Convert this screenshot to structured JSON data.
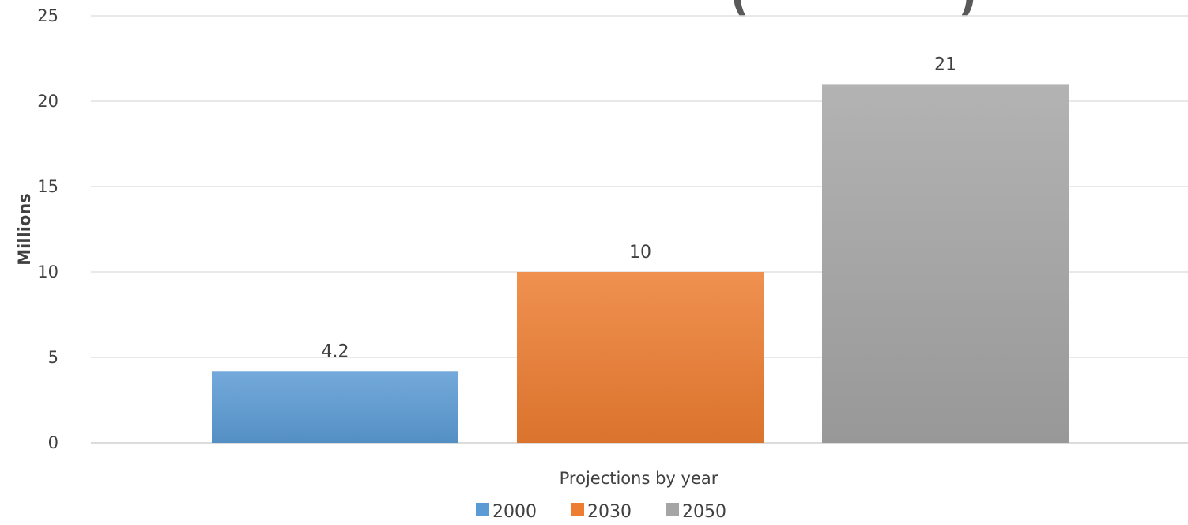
{
  "chart_data": {
    "type": "bar",
    "title": "(",
    "title_tail": ")",
    "xlabel": "Projections by year",
    "ylabel": "Millions",
    "ylim": [
      0,
      25
    ],
    "yticks": [
      0,
      5,
      10,
      15,
      20,
      25
    ],
    "ytick_labels": [
      "0",
      "5",
      "10",
      "15",
      "20",
      "25"
    ],
    "grid": true,
    "legend_position": "bottom",
    "series": [
      {
        "name": "2000",
        "values": [
          4.2
        ],
        "color": "#5b9bd5",
        "data_label": "4.2"
      },
      {
        "name": "2030",
        "values": [
          10
        ],
        "color": "#ed7d31",
        "data_label": "10"
      },
      {
        "name": "2050",
        "values": [
          21
        ],
        "color": "#a5a5a5",
        "data_label": "21"
      }
    ]
  }
}
